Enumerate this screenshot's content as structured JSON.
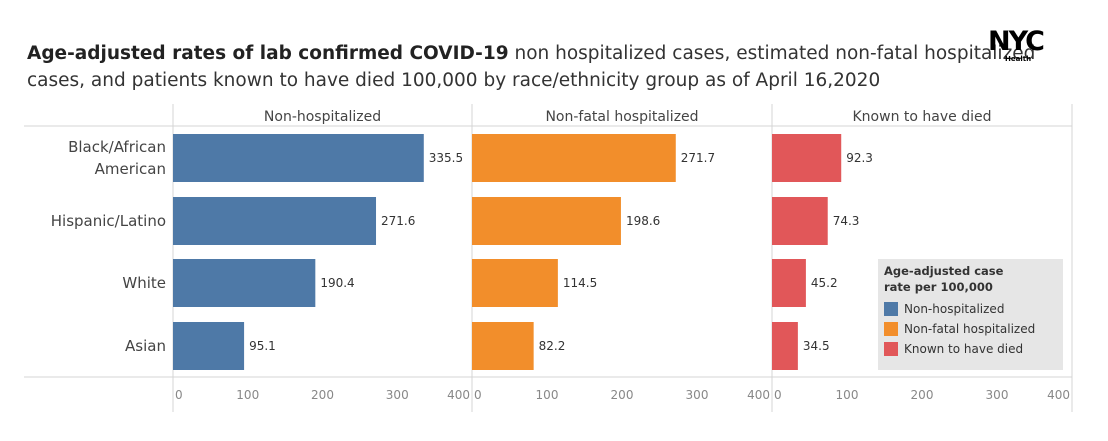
{
  "title": {
    "bold": "Age-adjusted rates of lab confirmed COVID-19",
    "rest": " non hospitalized cases, estimated non-fatal hospitalized cases, and patients known to have died 100,000 by race/ethnicity group as of April 16,2020"
  },
  "logo": {
    "word": "NYC",
    "sub": "Health"
  },
  "legend": {
    "title_line1": "Age-adjusted case",
    "title_line2": "rate per 100,000",
    "items": [
      {
        "label": "Non-hospitalized",
        "color": "#4e79a7"
      },
      {
        "label": "Non-fatal hospitalized",
        "color": "#f28e2b"
      },
      {
        "label": "Known to have died",
        "color": "#e15759"
      }
    ]
  },
  "chart_data": {
    "type": "bar",
    "orientation": "horizontal",
    "categories": [
      "Black/African American",
      "Hispanic/Latino",
      "White",
      "Asian"
    ],
    "category_lines": [
      [
        "Black/African",
        "American"
      ],
      [
        "Hispanic/Latino"
      ],
      [
        "White"
      ],
      [
        "Asian"
      ]
    ],
    "series": [
      {
        "name": "Non-hospitalized",
        "color": "#4e79a7",
        "values": [
          335.5,
          271.6,
          190.4,
          95.1
        ],
        "labels": [
          "335.5",
          "271.6",
          "190.4",
          "95.1"
        ]
      },
      {
        "name": "Non-fatal hospitalized",
        "color": "#f28e2b",
        "values": [
          271.7,
          198.6,
          114.5,
          82.2
        ],
        "labels": [
          "271.7",
          "198.6",
          "114.5",
          "82.2"
        ]
      },
      {
        "name": "Known to have died",
        "color": "#e15759",
        "values": [
          92.3,
          74.3,
          45.2,
          34.5
        ],
        "labels": [
          "92.3",
          "74.3",
          "45.2",
          "34.5"
        ]
      }
    ],
    "xlim": [
      0,
      400
    ],
    "ticks": [
      0,
      100,
      200,
      300,
      400
    ],
    "tick_labels": [
      "0",
      "100",
      "200",
      "300",
      "400"
    ],
    "panel_headers": [
      "Non-hospitalized",
      "Non-fatal hospitalized",
      "Known to have died"
    ],
    "grid": false,
    "legend_position": "bottom-right"
  }
}
